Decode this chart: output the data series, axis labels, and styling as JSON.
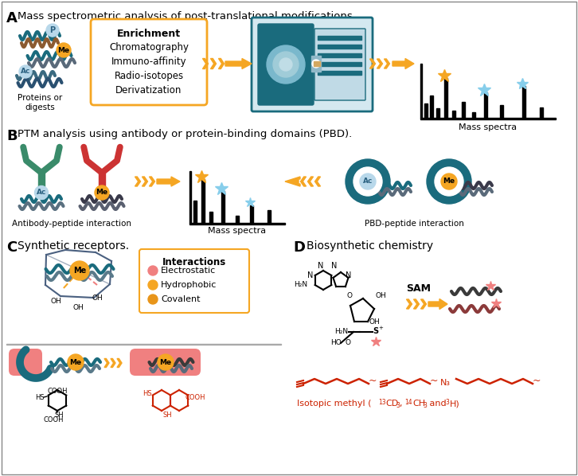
{
  "panel_A_title": "Mass spectrometric analysis of post-translational modifications.",
  "panel_B_title": "PTM analysis using antibody or protein-binding domains (PBD).",
  "panel_C_title": "Synthetic receptors.",
  "panel_D_title": "Biosynthetic chemistry",
  "enrichment_title": "Enrichment",
  "enrichment_items": [
    "Chromatography",
    "Immuno-affinity",
    "Radio-isotopes",
    "Derivatization"
  ],
  "interactions_title": "Interactions",
  "interactions_items": [
    "Electrostatic",
    "Hydrophobic",
    "Covalent"
  ],
  "int_colors": [
    "#f08080",
    "#f5a623",
    "#e8951a"
  ],
  "teal": "#1a6b7d",
  "teal_light": "#4a9aaa",
  "orange": "#f5a623",
  "salmon": "#f08080",
  "light_blue_label": "#87ceeb",
  "red": "#cc2200",
  "bg": "#ffffff",
  "proteins_label": "Proteins or\ndigests",
  "mass_spectra_A": "Mass spectra",
  "mass_spectra_B": "Mass spectra",
  "antibody_label": "Antibody-peptide interaction",
  "pbd_label": "PBD-peptide interaction",
  "sam_label": "SAM",
  "isotopic_label": "Isotopic methyl ("
}
